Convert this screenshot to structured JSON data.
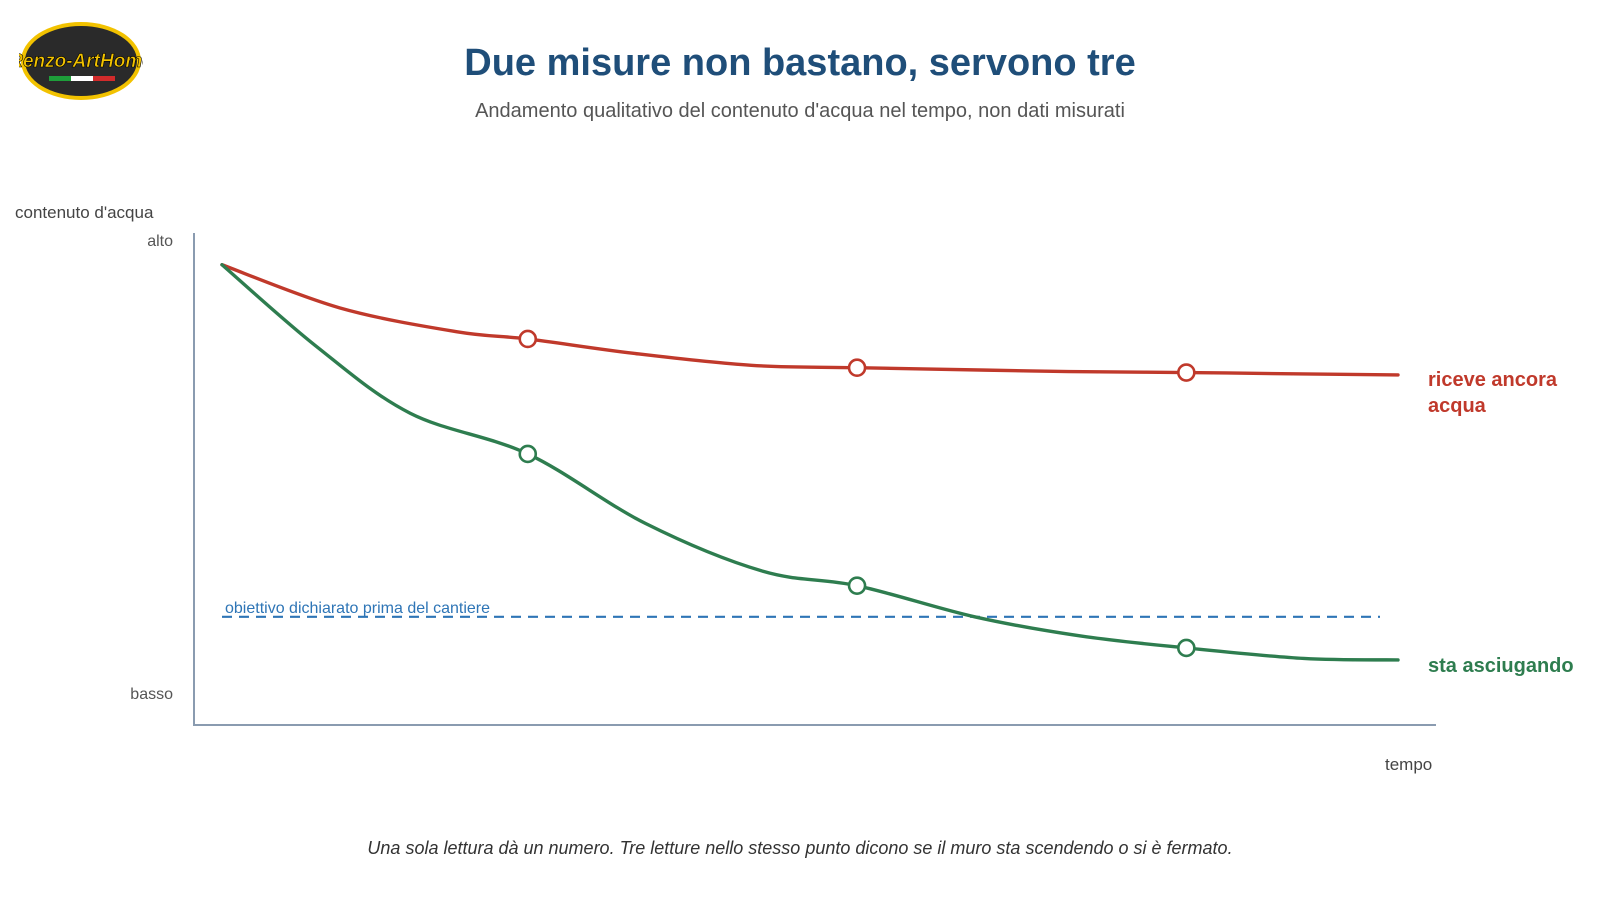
{
  "logo": {
    "text": "Renzo-ArtHome"
  },
  "title": "Due misure non bastano, servono tre",
  "subtitle": "Andamento qualitativo del contenuto d'acqua nel tempo, non dati misurati",
  "caption": "Una sola lettura dà un numero. Tre letture nello stesso punto dicono se il muro sta scendendo o si è fermato.",
  "colors": {
    "red": "#c0392b",
    "green": "#2e7d4f",
    "blue": "#2e75b6",
    "axis": "#8a9bb0",
    "title": "#1f4e79"
  },
  "chart_data": {
    "type": "line",
    "title": "Due misure non bastano, servono tre",
    "subtitle": "Andamento qualitativo del contenuto d'acqua nel tempo, non dati misurati",
    "xlabel": "tempo",
    "ylabel": "contenuto d'acqua",
    "y_ticks": {
      "high": "alto",
      "low": "basso"
    },
    "xlim": [
      0,
      100
    ],
    "ylim": [
      0,
      100
    ],
    "grid": false,
    "legend": "inline-right",
    "series": [
      {
        "name": "riceve ancora acqua",
        "color": "#c0392b",
        "x": [
          0,
          10,
          20,
          26,
          35,
          45,
          54,
          65,
          72,
          82,
          92,
          100
        ],
        "y": [
          94,
          85,
          80,
          78.5,
          75.5,
          73,
          72.5,
          72,
          71.7,
          71.5,
          71.2,
          71
        ],
        "markers_x": [
          26,
          54,
          82
        ],
        "markers_y": [
          78.5,
          72.5,
          71.5
        ]
      },
      {
        "name": "sta asciugando",
        "color": "#2e7d4f",
        "x": [
          0,
          8,
          16,
          26,
          36,
          46,
          54,
          64,
          73,
          82,
          92,
          100
        ],
        "y": [
          94,
          77,
          63,
          54.5,
          40,
          30,
          27,
          20.5,
          16.5,
          14,
          11.8,
          11.5
        ],
        "markers_x": [
          26,
          54,
          82
        ],
        "markers_y": [
          54.5,
          27,
          14
        ]
      }
    ],
    "reference_line": {
      "label": "obiettivo dichiarato prima del cantiere",
      "y": 20.5,
      "style": "dashed",
      "color": "#2e75b6"
    }
  }
}
